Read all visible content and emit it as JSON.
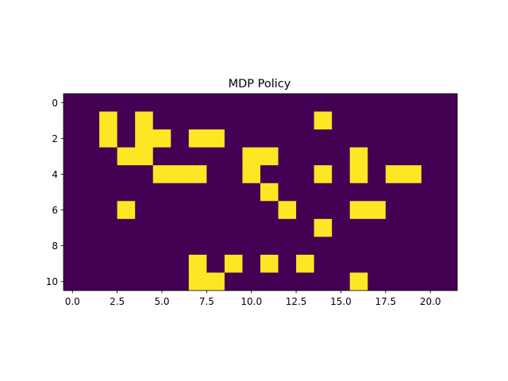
{
  "chart_data": {
    "type": "heatmap",
    "title": "MDP Policy",
    "xlabel": "",
    "ylabel": "",
    "rows": 11,
    "cols": 22,
    "xlim": [
      -0.5,
      21.5
    ],
    "ylim": [
      10.5,
      -0.5
    ],
    "x_ticks": [
      0.0,
      2.5,
      5.0,
      7.5,
      10.0,
      12.5,
      15.0,
      17.5,
      20.0
    ],
    "x_tick_labels": [
      "0.0",
      "2.5",
      "5.0",
      "7.5",
      "10.0",
      "12.5",
      "15.0",
      "17.5",
      "20.0"
    ],
    "y_ticks": [
      0,
      2,
      4,
      6,
      8,
      10
    ],
    "y_tick_labels": [
      "0",
      "2",
      "4",
      "6",
      "8",
      "10"
    ],
    "grid": false,
    "colors": {
      "low": "#440154",
      "high": "#fde725"
    },
    "values": [
      [
        0,
        0,
        0,
        0,
        0,
        0,
        0,
        0,
        0,
        0,
        0,
        0,
        0,
        0,
        0,
        0,
        0,
        0,
        0,
        0,
        0,
        0
      ],
      [
        0,
        0,
        1,
        0,
        1,
        0,
        0,
        0,
        0,
        0,
        0,
        0,
        0,
        0,
        1,
        0,
        0,
        0,
        0,
        0,
        0,
        0
      ],
      [
        0,
        0,
        1,
        0,
        1,
        1,
        0,
        1,
        1,
        0,
        0,
        0,
        0,
        0,
        0,
        0,
        0,
        0,
        0,
        0,
        0,
        0
      ],
      [
        0,
        0,
        0,
        1,
        1,
        0,
        0,
        0,
        0,
        0,
        1,
        1,
        0,
        0,
        0,
        0,
        1,
        0,
        0,
        0,
        0,
        0
      ],
      [
        0,
        0,
        0,
        0,
        0,
        1,
        1,
        1,
        0,
        0,
        1,
        0,
        0,
        0,
        1,
        0,
        1,
        0,
        1,
        1,
        0,
        0
      ],
      [
        0,
        0,
        0,
        0,
        0,
        0,
        0,
        0,
        0,
        0,
        0,
        1,
        0,
        0,
        0,
        0,
        0,
        0,
        0,
        0,
        0,
        0
      ],
      [
        0,
        0,
        0,
        1,
        0,
        0,
        0,
        0,
        0,
        0,
        0,
        0,
        1,
        0,
        0,
        0,
        1,
        1,
        0,
        0,
        0,
        0
      ],
      [
        0,
        0,
        0,
        0,
        0,
        0,
        0,
        0,
        0,
        0,
        0,
        0,
        0,
        0,
        1,
        0,
        0,
        0,
        0,
        0,
        0,
        0
      ],
      [
        0,
        0,
        0,
        0,
        0,
        0,
        0,
        0,
        0,
        0,
        0,
        0,
        0,
        0,
        0,
        0,
        0,
        0,
        0,
        0,
        0,
        0
      ],
      [
        0,
        0,
        0,
        0,
        0,
        0,
        0,
        1,
        0,
        1,
        0,
        1,
        0,
        1,
        0,
        0,
        0,
        0,
        0,
        0,
        0,
        0
      ],
      [
        0,
        0,
        0,
        0,
        0,
        0,
        0,
        1,
        1,
        0,
        0,
        0,
        0,
        0,
        0,
        0,
        1,
        0,
        0,
        0,
        0,
        0
      ]
    ]
  }
}
